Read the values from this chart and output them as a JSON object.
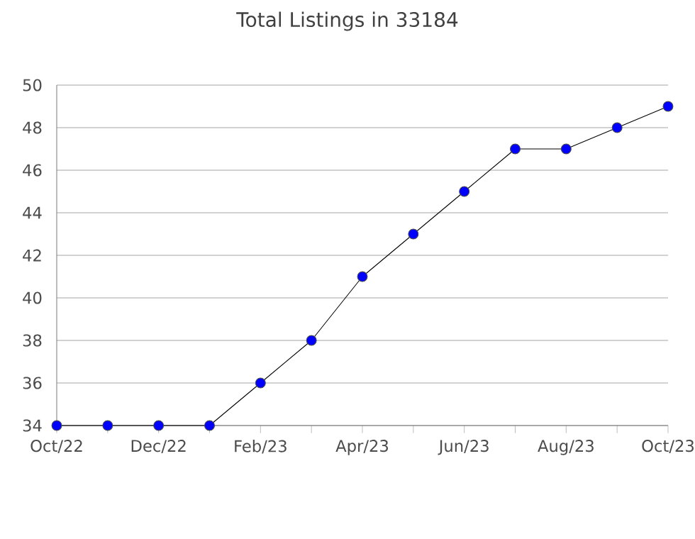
{
  "chart_data": {
    "type": "line",
    "title": "Total Listings in 33184",
    "categories": [
      "Oct/22",
      null,
      "Dec/22",
      null,
      "Feb/23",
      null,
      "Apr/23",
      null,
      "Jun/23",
      null,
      "Aug/23",
      null,
      "Oct/23"
    ],
    "series": [
      {
        "color": "#0000ff",
        "values": [
          34,
          34,
          34,
          34,
          36,
          38,
          41,
          43,
          45,
          47,
          47,
          48,
          49
        ]
      }
    ],
    "ylim": [
      34,
      50
    ],
    "yticks": [
      34,
      36,
      38,
      40,
      42,
      44,
      46,
      48,
      50
    ],
    "grid": "y",
    "marker": "circle",
    "line_style": "solid"
  }
}
